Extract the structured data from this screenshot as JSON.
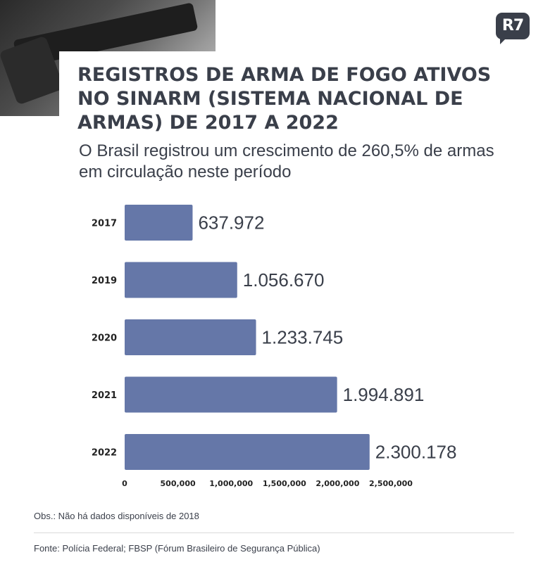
{
  "brand": {
    "logo_text": "R7",
    "colors": {
      "text": "#3a3f4a",
      "bar": "#6577a8",
      "background": "#ffffff"
    }
  },
  "header": {
    "title": "REGISTROS DE ARMA DE FOGO ATIVOS NO SINARM (SISTEMA NACIONAL DE ARMAS) DE 2017 A 2022",
    "subtitle": "O Brasil registrou um crescimento de 260,5% de armas em circulação neste período"
  },
  "chart_data": {
    "type": "bar",
    "orientation": "horizontal",
    "categories": [
      "2017",
      "2019",
      "2020",
      "2021",
      "2022"
    ],
    "values": [
      637972,
      1056670,
      1233745,
      1994891,
      2300178
    ],
    "value_labels": [
      "637.972",
      "1.056.670",
      "1.233.745",
      "1.994.891",
      "2.300.178"
    ],
    "xlim": [
      0,
      2500000
    ],
    "x_ticks": [
      0,
      500000,
      1000000,
      1500000,
      2000000,
      2500000
    ],
    "x_tick_labels": [
      "0",
      "500,000",
      "1,000,000",
      "1,500,000",
      "2,000,000",
      "2,500,000"
    ],
    "grid": false,
    "bar_color": "#6577a8"
  },
  "footer": {
    "note": "Obs.: Não há dados disponíveis de 2018",
    "source": "Fonte: Polícia Federal; FBSP (Fórum Brasileiro de Segurança Pública)"
  }
}
